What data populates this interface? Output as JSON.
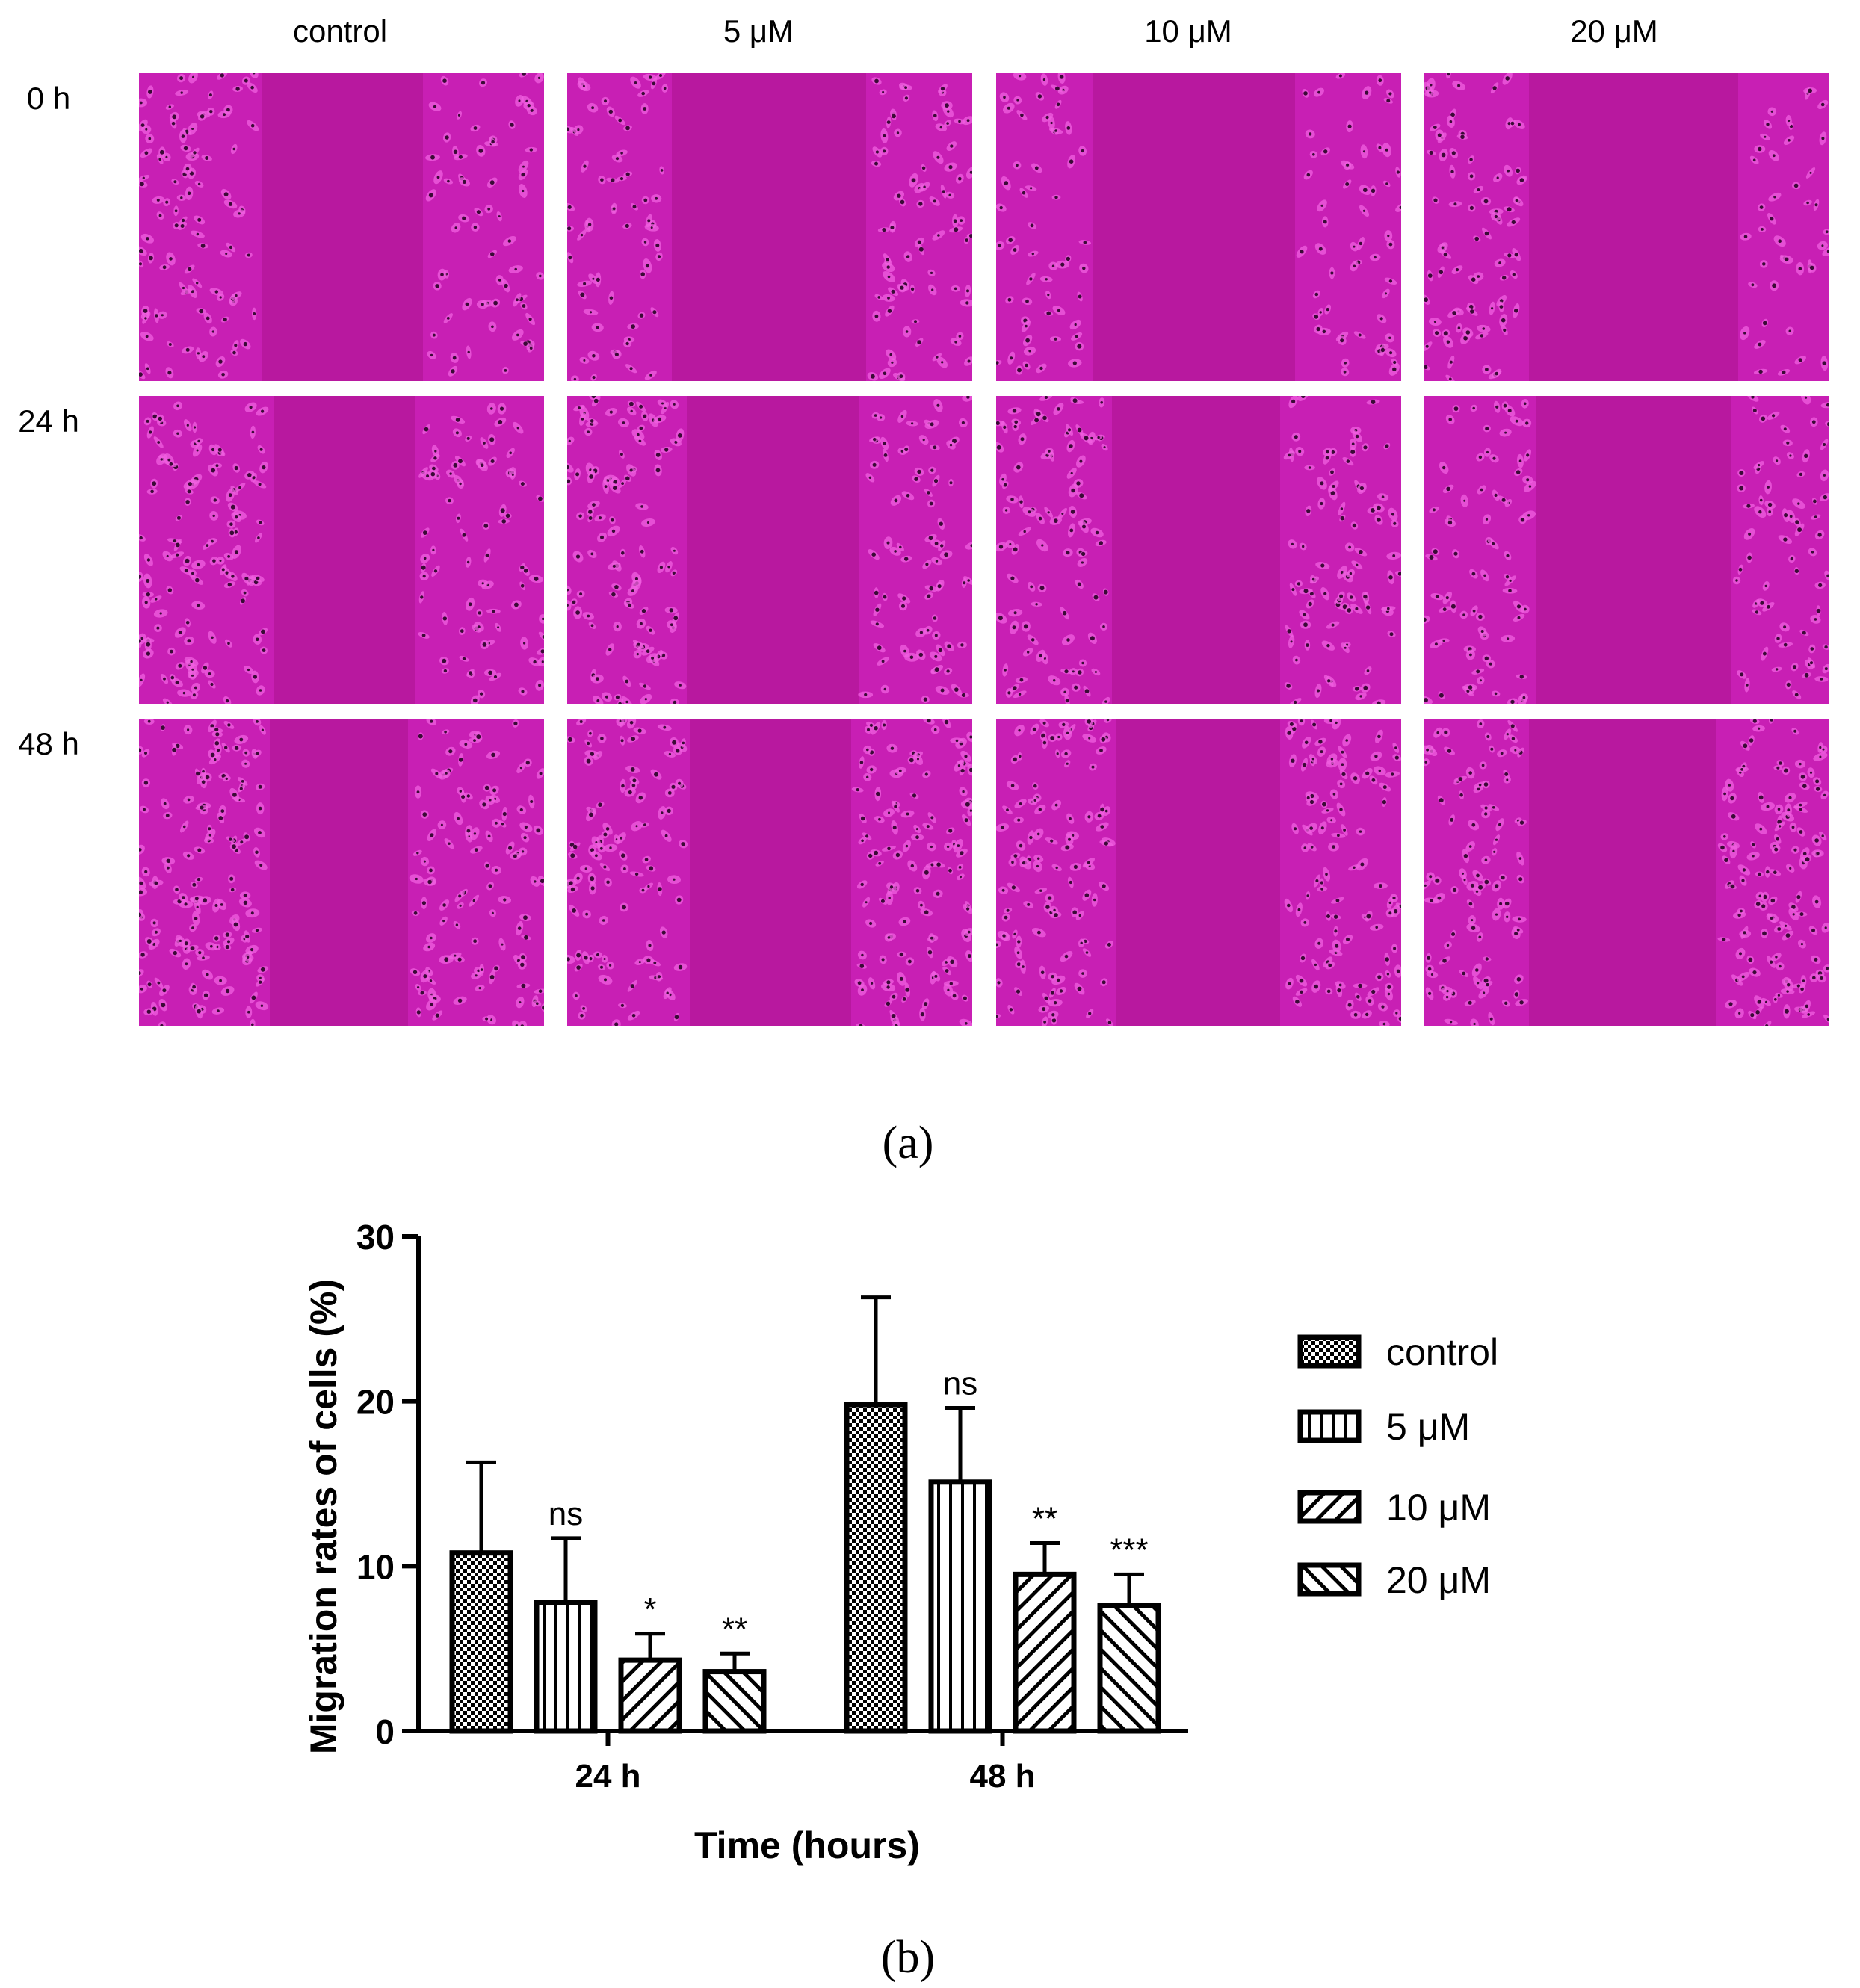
{
  "figure_a": {
    "column_labels": [
      "control",
      "5 μM",
      "10 μM",
      "20 μM"
    ],
    "row_labels": [
      "0 h",
      "24 h",
      "48 h"
    ],
    "panel_label": "(a)"
  },
  "figure_b": {
    "panel_label": "(b)"
  },
  "colors": {
    "micrograph_base": "#c81fb4",
    "micrograph_bright": "#f060e0",
    "micrograph_gap": "#b8189f",
    "bar_stroke": "#000000"
  },
  "chart_data": {
    "type": "bar",
    "categories": [
      "24 h",
      "48 h"
    ],
    "series": [
      {
        "name": "control",
        "values": [
          10.8,
          19.8
        ],
        "errors": [
          5.5,
          6.5
        ],
        "significance": [
          "",
          ""
        ],
        "pattern": "checker"
      },
      {
        "name": "5 μM",
        "values": [
          7.8,
          15.1
        ],
        "errors": [
          3.9,
          4.5
        ],
        "significance": [
          "ns",
          "ns"
        ],
        "pattern": "vertical"
      },
      {
        "name": "10 μM",
        "values": [
          4.3,
          9.5
        ],
        "errors": [
          1.6,
          1.9
        ],
        "significance": [
          "*",
          "**"
        ],
        "pattern": "diagonal-up"
      },
      {
        "name": "20 μM",
        "values": [
          3.6,
          7.6
        ],
        "errors": [
          1.1,
          1.9
        ],
        "significance": [
          "**",
          "***"
        ],
        "pattern": "diagonal-down"
      }
    ],
    "xlabel": "Time (hours)",
    "ylabel": "Migration rates of cells (%)",
    "ylim": [
      0,
      30
    ],
    "yticks": [
      0,
      10,
      20,
      30
    ],
    "legend_position": "right",
    "grid": false
  }
}
